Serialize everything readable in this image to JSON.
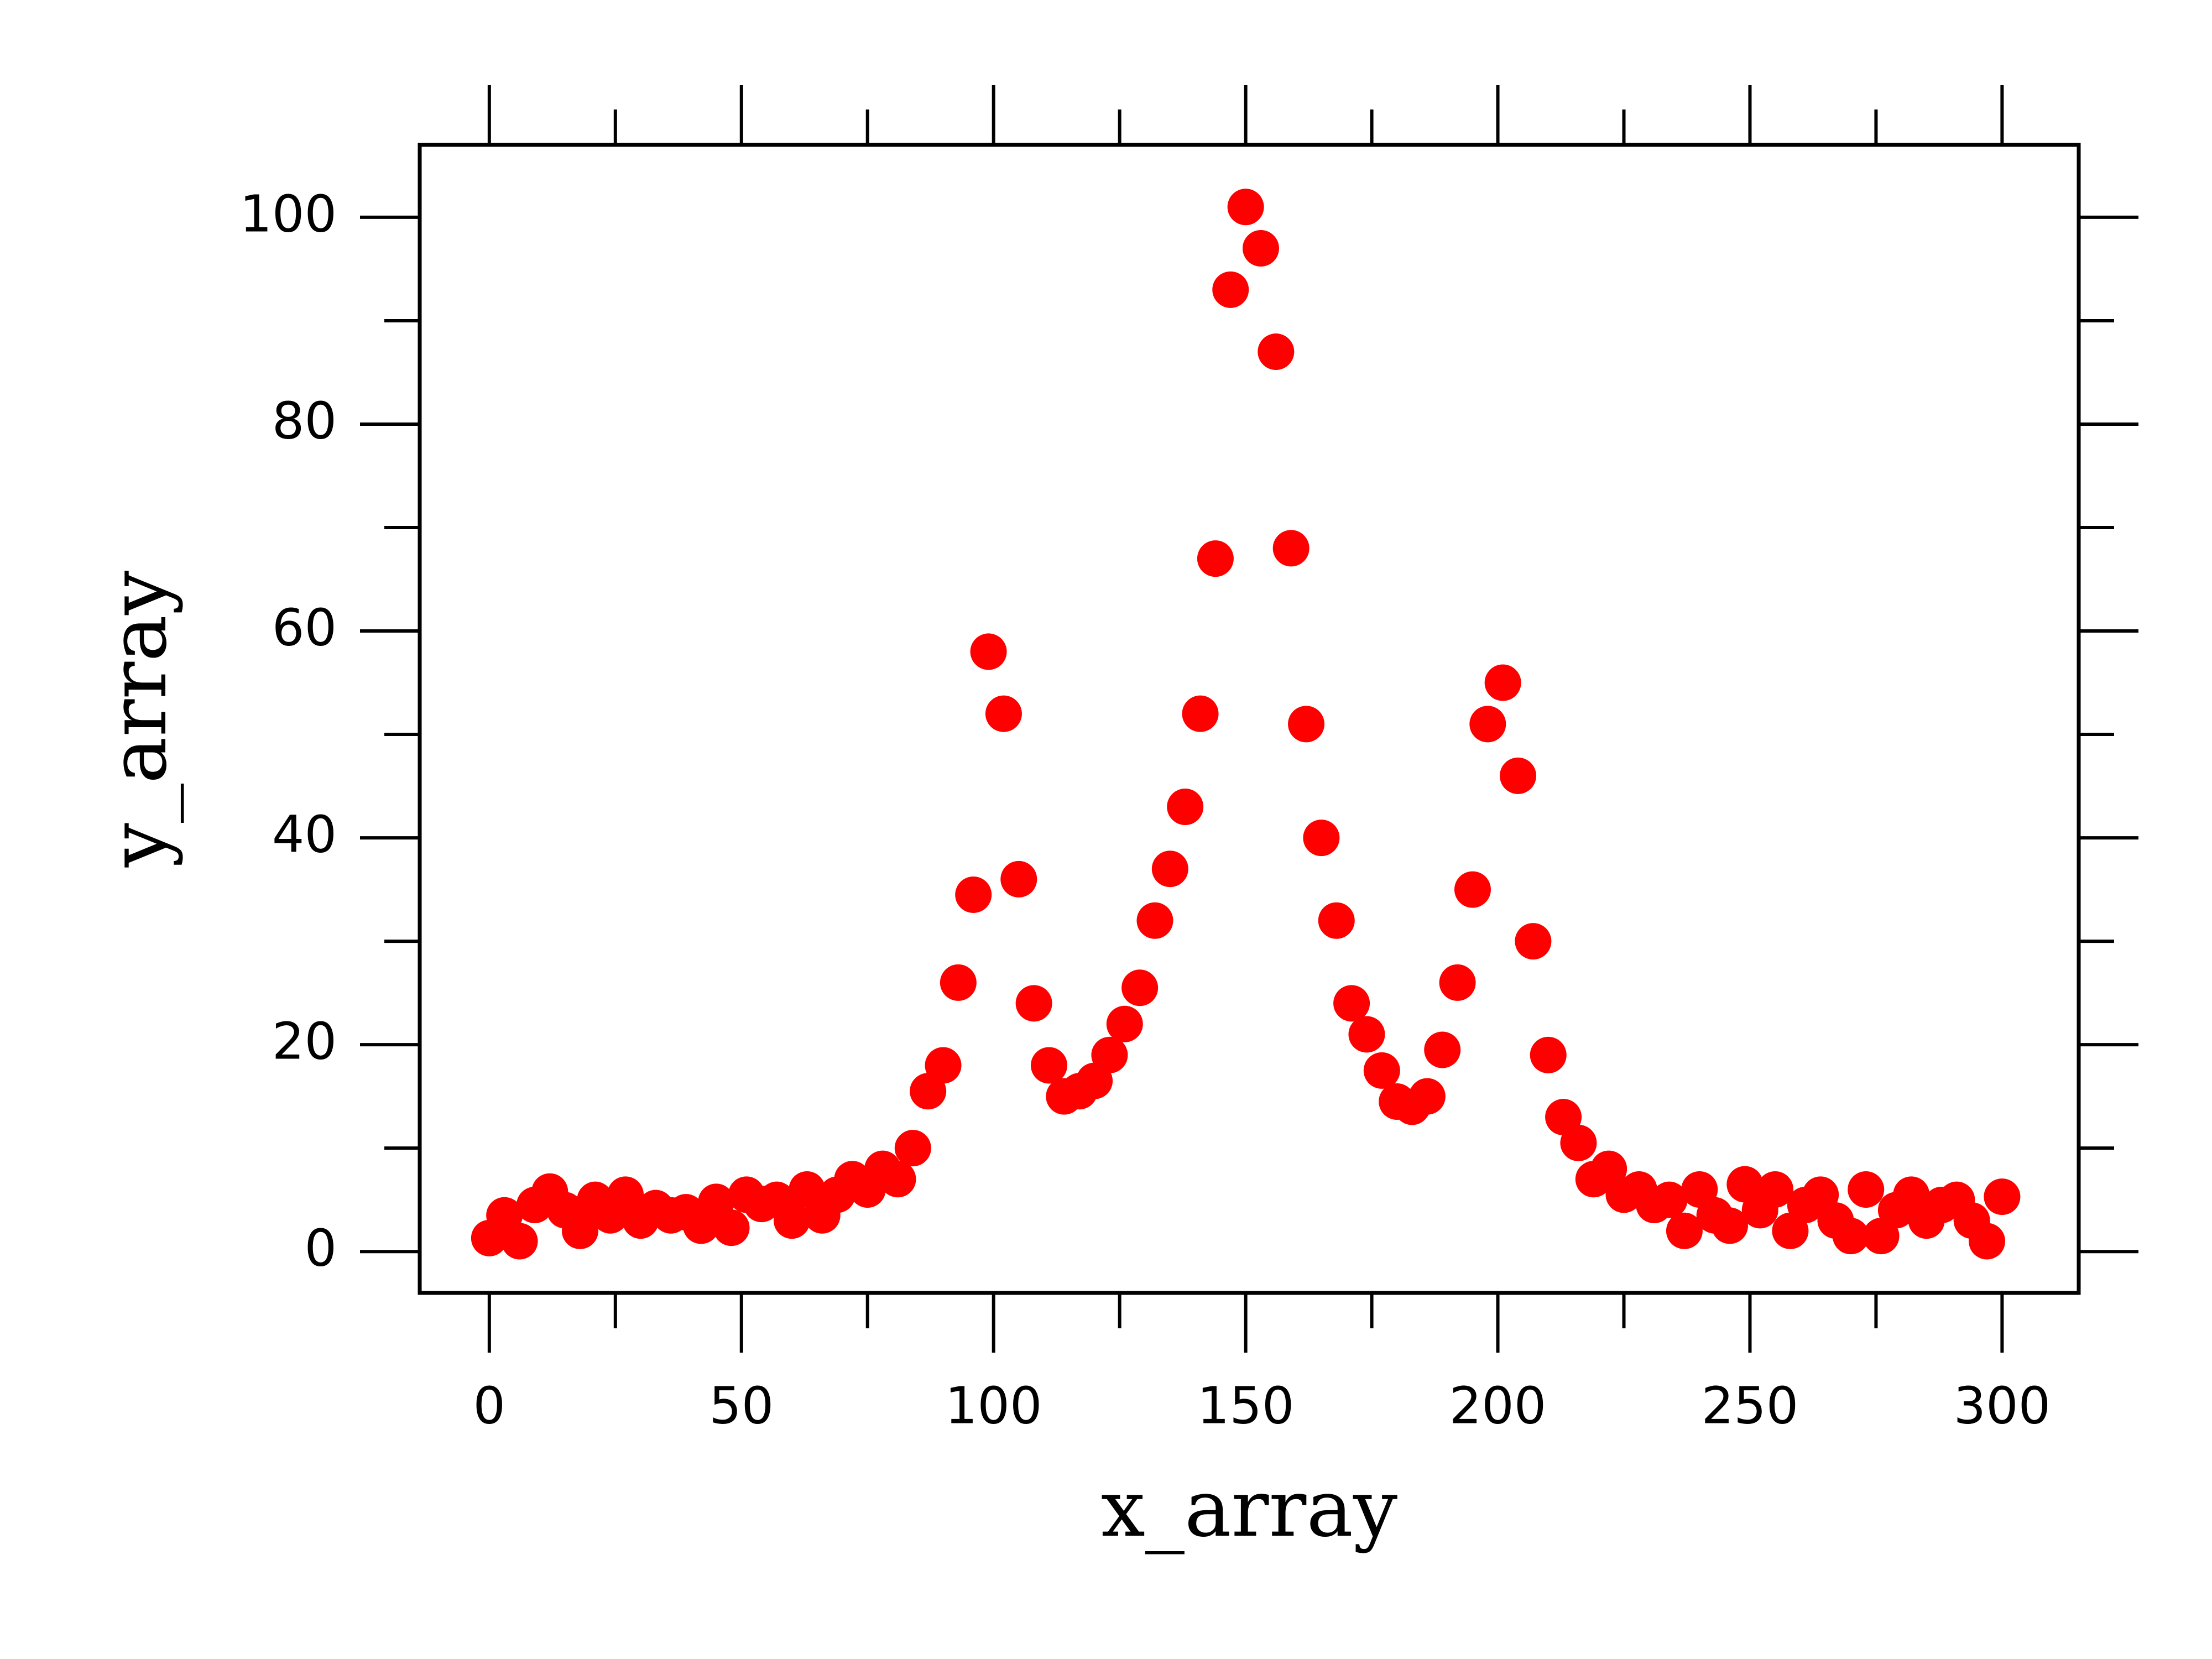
{
  "chart_data": {
    "type": "scatter",
    "xlabel": "x_array",
    "ylabel": "y_array",
    "x": [
      0,
      3,
      6,
      9,
      12,
      15,
      18,
      21,
      24,
      27,
      30,
      33,
      36,
      39,
      42,
      45,
      48,
      51,
      54,
      57,
      60,
      63,
      66,
      69,
      72,
      75,
      78,
      81,
      84,
      87,
      90,
      93,
      96,
      99,
      102,
      105,
      108,
      111,
      114,
      117,
      120,
      123,
      126,
      129,
      132,
      135,
      138,
      141,
      144,
      147,
      150,
      153,
      156,
      159,
      162,
      165,
      168,
      171,
      174,
      177,
      180,
      183,
      186,
      189,
      192,
      195,
      198,
      201,
      204,
      207,
      210,
      213,
      216,
      219,
      222,
      225,
      228,
      231,
      234,
      237,
      240,
      243,
      246,
      249,
      252,
      255,
      258,
      261,
      264,
      267,
      270,
      273,
      276,
      279,
      282,
      285,
      288,
      291,
      294,
      297,
      300
    ],
    "series": [
      {
        "color": "#ff0000",
        "values": [
          1.3,
          3.5,
          1.0,
          4.5,
          5.8,
          4.0,
          2.0,
          5.0,
          3.5,
          5.5,
          3.0,
          4.2,
          3.5,
          3.8,
          2.5,
          4.8,
          2.3,
          5.5,
          4.6,
          5.0,
          3.0,
          6.0,
          3.5,
          5.5,
          7.0,
          6.0,
          8.0,
          7.0,
          10.0,
          15.5,
          18,
          26,
          34.5,
          58,
          52,
          36,
          24,
          18,
          15,
          15.5,
          16.5,
          19,
          22,
          25.5,
          32,
          37,
          43,
          52,
          67,
          93,
          101,
          97,
          87,
          68,
          51,
          40,
          32,
          24,
          21,
          17.5,
          14.5,
          14,
          15,
          19.5,
          26,
          35,
          51,
          55,
          46,
          30,
          19,
          13,
          10.5,
          7,
          8,
          5.5,
          6,
          4.5,
          5,
          2,
          6,
          3.5,
          2.5,
          6.5,
          4,
          6,
          2,
          4.5,
          5.5,
          3,
          1.5,
          6,
          1.5,
          4,
          5.5,
          3,
          4.5,
          5,
          3,
          1,
          5.3
        ]
      }
    ],
    "xlim": [
      -13.8,
      315.2
    ],
    "ylim": [
      -4,
      107
    ],
    "xticks": [
      0,
      50,
      100,
      150,
      200,
      250,
      300
    ],
    "yticks": [
      0,
      20,
      40,
      60,
      80,
      100
    ],
    "xticks_minor": [
      25,
      75,
      125,
      175,
      225,
      275
    ],
    "yticks_minor": [
      10,
      30,
      50,
      70,
      90
    ]
  }
}
